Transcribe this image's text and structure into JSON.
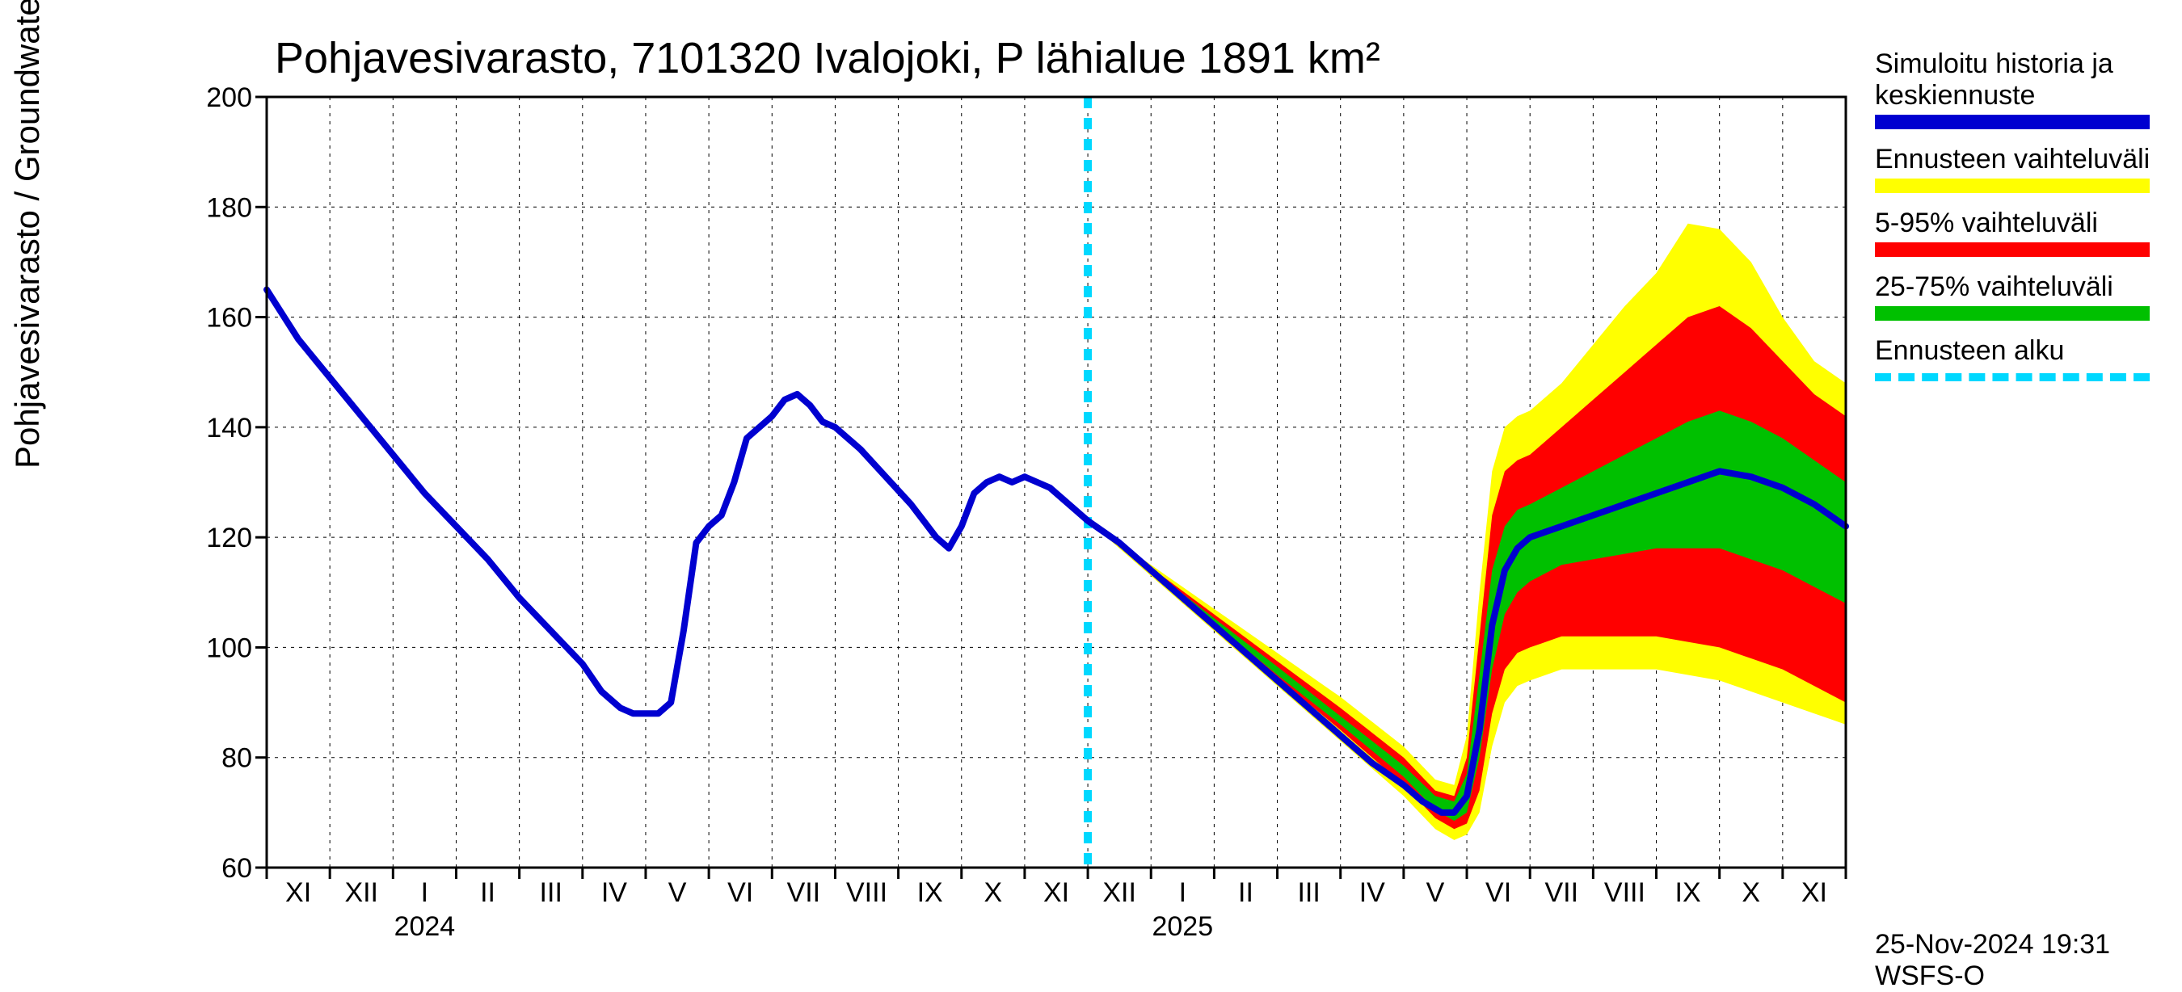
{
  "chart": {
    "type": "line-with-bands",
    "title": "Pohjavesivarasto, 7101320 Ivalojoki, P lähialue 1891 km²",
    "y_axis": {
      "label": "Pohjavesivarasto / Groundwater storage   mm",
      "min": 60,
      "max": 200,
      "ticks": [
        60,
        80,
        100,
        120,
        140,
        160,
        180,
        200
      ],
      "label_fontsize": 42,
      "tick_fontsize": 34
    },
    "x_axis": {
      "months": [
        "XI",
        "XII",
        "I",
        "II",
        "III",
        "IV",
        "V",
        "VI",
        "VII",
        "VIII",
        "IX",
        "X",
        "XI",
        "XII",
        "I",
        "II",
        "III",
        "IV",
        "V",
        "VI",
        "VII",
        "VIII",
        "IX",
        "X",
        "XI"
      ],
      "year_labels": [
        {
          "text": "2024",
          "month_index": 2.5
        },
        {
          "text": "2025",
          "month_index": 14.5
        }
      ],
      "tick_fontsize": 34
    },
    "forecast_start_month_index": 13,
    "colors": {
      "line": "#0000d0",
      "outer_band": "#ffff00",
      "mid_band": "#ff0000",
      "inner_band": "#00c000",
      "forecast_marker": "#00d8ff",
      "grid": "#000000",
      "background": "#ffffff",
      "text": "#000000"
    },
    "line_width": 8,
    "forecast_marker_width": 10,
    "forecast_marker_dash": "14 12",
    "series_line": [
      [
        0,
        165
      ],
      [
        0.5,
        156
      ],
      [
        1,
        149
      ],
      [
        1.5,
        142
      ],
      [
        2,
        135
      ],
      [
        2.5,
        128
      ],
      [
        3,
        122
      ],
      [
        3.5,
        116
      ],
      [
        4,
        109
      ],
      [
        4.5,
        103
      ],
      [
        5,
        97
      ],
      [
        5.3,
        92
      ],
      [
        5.6,
        89
      ],
      [
        5.8,
        88
      ],
      [
        6,
        88
      ],
      [
        6.2,
        88
      ],
      [
        6.4,
        90
      ],
      [
        6.6,
        103
      ],
      [
        6.8,
        119
      ],
      [
        7,
        122
      ],
      [
        7.2,
        124
      ],
      [
        7.4,
        130
      ],
      [
        7.6,
        138
      ],
      [
        7.8,
        140
      ],
      [
        8,
        142
      ],
      [
        8.2,
        145
      ],
      [
        8.4,
        146
      ],
      [
        8.6,
        144
      ],
      [
        8.8,
        141
      ],
      [
        9,
        140
      ],
      [
        9.4,
        136
      ],
      [
        9.8,
        131
      ],
      [
        10.2,
        126
      ],
      [
        10.6,
        120
      ],
      [
        10.8,
        118
      ],
      [
        11,
        122
      ],
      [
        11.2,
        128
      ],
      [
        11.4,
        130
      ],
      [
        11.6,
        131
      ],
      [
        11.8,
        130
      ],
      [
        12,
        131
      ],
      [
        12.2,
        130
      ],
      [
        12.4,
        129
      ],
      [
        12.6,
        127
      ],
      [
        13,
        123
      ],
      [
        13.5,
        119
      ],
      [
        14,
        114
      ],
      [
        14.5,
        109
      ],
      [
        15,
        104
      ],
      [
        15.5,
        99
      ],
      [
        16,
        94
      ],
      [
        16.5,
        89
      ],
      [
        17,
        84
      ],
      [
        17.5,
        79
      ],
      [
        18,
        75
      ],
      [
        18.3,
        72
      ],
      [
        18.6,
        70
      ],
      [
        18.8,
        70
      ],
      [
        19,
        73
      ],
      [
        19.2,
        85
      ],
      [
        19.4,
        104
      ],
      [
        19.6,
        114
      ],
      [
        19.8,
        118
      ],
      [
        20,
        120
      ],
      [
        20.5,
        122
      ],
      [
        21,
        124
      ],
      [
        21.5,
        126
      ],
      [
        22,
        128
      ],
      [
        22.5,
        130
      ],
      [
        23,
        132
      ],
      [
        23.5,
        131
      ],
      [
        24,
        129
      ],
      [
        24.5,
        126
      ],
      [
        25,
        122
      ]
    ],
    "band_outer": {
      "upper": [
        [
          13,
          123
        ],
        [
          14,
          115
        ],
        [
          15,
          107
        ],
        [
          16,
          99
        ],
        [
          17,
          91
        ],
        [
          18,
          82
        ],
        [
          18.5,
          76
        ],
        [
          18.8,
          75
        ],
        [
          19,
          84
        ],
        [
          19.2,
          110
        ],
        [
          19.4,
          132
        ],
        [
          19.6,
          140
        ],
        [
          19.8,
          142
        ],
        [
          20,
          143
        ],
        [
          20.5,
          148
        ],
        [
          21,
          155
        ],
        [
          21.5,
          162
        ],
        [
          22,
          168
        ],
        [
          22.5,
          177
        ],
        [
          23,
          176
        ],
        [
          23.5,
          170
        ],
        [
          24,
          160
        ],
        [
          24.5,
          152
        ],
        [
          25,
          148
        ]
      ],
      "lower": [
        [
          13,
          123
        ],
        [
          14,
          113
        ],
        [
          15,
          103
        ],
        [
          16,
          93
        ],
        [
          17,
          83
        ],
        [
          18,
          73
        ],
        [
          18.5,
          67
        ],
        [
          18.8,
          65
        ],
        [
          19,
          66
        ],
        [
          19.2,
          70
        ],
        [
          19.4,
          82
        ],
        [
          19.6,
          90
        ],
        [
          19.8,
          93
        ],
        [
          20,
          94
        ],
        [
          20.5,
          96
        ],
        [
          21,
          96
        ],
        [
          21.5,
          96
        ],
        [
          22,
          96
        ],
        [
          22.5,
          95
        ],
        [
          23,
          94
        ],
        [
          23.5,
          92
        ],
        [
          24,
          90
        ],
        [
          24.5,
          88
        ],
        [
          25,
          86
        ]
      ]
    },
    "band_mid": {
      "upper": [
        [
          13,
          123
        ],
        [
          14,
          114.5
        ],
        [
          15,
          106
        ],
        [
          16,
          97.5
        ],
        [
          17,
          89
        ],
        [
          18,
          80
        ],
        [
          18.5,
          74
        ],
        [
          18.8,
          73
        ],
        [
          19,
          80
        ],
        [
          19.2,
          102
        ],
        [
          19.4,
          124
        ],
        [
          19.6,
          132
        ],
        [
          19.8,
          134
        ],
        [
          20,
          135
        ],
        [
          20.5,
          140
        ],
        [
          21,
          145
        ],
        [
          21.5,
          150
        ],
        [
          22,
          155
        ],
        [
          22.5,
          160
        ],
        [
          23,
          162
        ],
        [
          23.5,
          158
        ],
        [
          24,
          152
        ],
        [
          24.5,
          146
        ],
        [
          25,
          142
        ]
      ],
      "lower": [
        [
          13,
          123
        ],
        [
          14,
          113.5
        ],
        [
          15,
          104
        ],
        [
          16,
          94.5
        ],
        [
          17,
          85
        ],
        [
          18,
          75
        ],
        [
          18.5,
          69
        ],
        [
          18.8,
          67
        ],
        [
          19,
          68
        ],
        [
          19.2,
          74
        ],
        [
          19.4,
          88
        ],
        [
          19.6,
          96
        ],
        [
          19.8,
          99
        ],
        [
          20,
          100
        ],
        [
          20.5,
          102
        ],
        [
          21,
          102
        ],
        [
          21.5,
          102
        ],
        [
          22,
          102
        ],
        [
          22.5,
          101
        ],
        [
          23,
          100
        ],
        [
          23.5,
          98
        ],
        [
          24,
          96
        ],
        [
          24.5,
          93
        ],
        [
          25,
          90
        ]
      ]
    },
    "band_inner": {
      "upper": [
        [
          13,
          123
        ],
        [
          14,
          114.2
        ],
        [
          15,
          105.3
        ],
        [
          16,
          96.5
        ],
        [
          17,
          87.5
        ],
        [
          18,
          78.5
        ],
        [
          18.5,
          73
        ],
        [
          18.8,
          72
        ],
        [
          19,
          77
        ],
        [
          19.2,
          95
        ],
        [
          19.4,
          114
        ],
        [
          19.6,
          122
        ],
        [
          19.8,
          125
        ],
        [
          20,
          126
        ],
        [
          20.5,
          129
        ],
        [
          21,
          132
        ],
        [
          21.5,
          135
        ],
        [
          22,
          138
        ],
        [
          22.5,
          141
        ],
        [
          23,
          143
        ],
        [
          23.5,
          141
        ],
        [
          24,
          138
        ],
        [
          24.5,
          134
        ],
        [
          25,
          130
        ]
      ],
      "lower": [
        [
          13,
          123
        ],
        [
          14,
          113.8
        ],
        [
          15,
          104.5
        ],
        [
          16,
          95
        ],
        [
          17,
          86
        ],
        [
          18,
          76.5
        ],
        [
          18.5,
          70.5
        ],
        [
          18.8,
          68.5
        ],
        [
          19,
          70
        ],
        [
          19.2,
          80
        ],
        [
          19.4,
          96
        ],
        [
          19.6,
          106
        ],
        [
          19.8,
          110
        ],
        [
          20,
          112
        ],
        [
          20.5,
          115
        ],
        [
          21,
          116
        ],
        [
          21.5,
          117
        ],
        [
          22,
          118
        ],
        [
          22.5,
          118
        ],
        [
          23,
          118
        ],
        [
          23.5,
          116
        ],
        [
          24,
          114
        ],
        [
          24.5,
          111
        ],
        [
          25,
          108
        ]
      ]
    },
    "legend": [
      {
        "label": "Simuloitu historia ja keskiennuste",
        "type": "solid",
        "color": "#0000d0"
      },
      {
        "label": "Ennusteen vaihteluväli",
        "type": "solid",
        "color": "#ffff00"
      },
      {
        "label": "5-95% vaihteluväli",
        "type": "solid",
        "color": "#ff0000"
      },
      {
        "label": "25-75% vaihteluväli",
        "type": "solid",
        "color": "#00c000"
      },
      {
        "label": "Ennusteen alku",
        "type": "dashed",
        "color": "#00d8ff"
      }
    ]
  },
  "footer": {
    "timestamp": "25-Nov-2024 19:31 WSFS-O"
  }
}
